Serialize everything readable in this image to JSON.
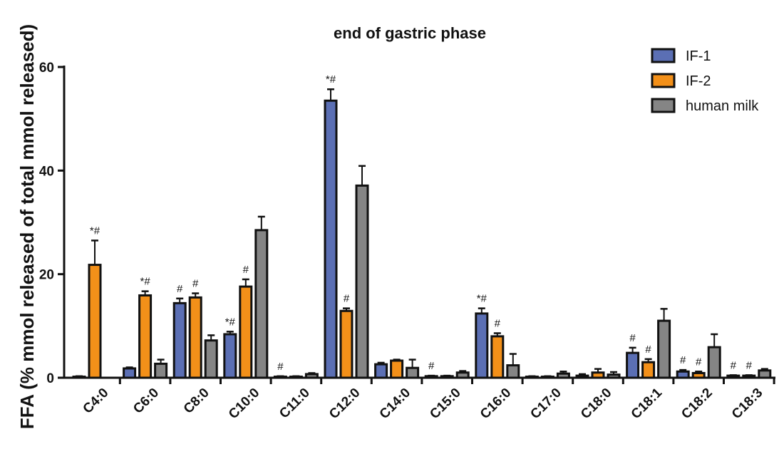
{
  "chart_data": {
    "type": "bar",
    "title": "end of gastric phase",
    "ylabel": "FFA (% mmol released of total mmol released)",
    "xlabel": "",
    "ylim": [
      0,
      60
    ],
    "yticks": [
      0,
      20,
      40,
      60
    ],
    "grid": false,
    "legend_position": "top-right",
    "categories": [
      "C4:0",
      "C6:0",
      "C8:0",
      "C10:0",
      "C11:0",
      "C12:0",
      "C14:0",
      "C15:0",
      "C16:0",
      "C17:0",
      "C18:0",
      "C18:1",
      "C18:2",
      "C18:3"
    ],
    "series": [
      {
        "name": "IF-1",
        "color": "#5b6fb4",
        "values": [
          0.2,
          1.8,
          14.4,
          8.4,
          0.2,
          53.5,
          2.6,
          0.3,
          12.4,
          0.2,
          0.4,
          4.8,
          1.2,
          0.4
        ],
        "errors": [
          0.1,
          0.2,
          0.9,
          0.5,
          0.1,
          2.2,
          0.3,
          0.1,
          1.0,
          0.1,
          0.3,
          1.0,
          0.3,
          0.1
        ],
        "annotations": [
          "",
          "",
          "#",
          "*#",
          "#",
          "*#",
          "",
          "#",
          "*#",
          "",
          "",
          "#",
          "#",
          "#"
        ]
      },
      {
        "name": "IF-2",
        "color": "#f39019",
        "values": [
          21.8,
          15.9,
          15.5,
          17.6,
          0.2,
          12.9,
          3.3,
          0.3,
          8.0,
          0.2,
          1.0,
          3.0,
          0.9,
          0.4
        ],
        "errors": [
          4.7,
          0.8,
          0.8,
          1.4,
          0.1,
          0.5,
          0.2,
          0.1,
          0.6,
          0.1,
          0.7,
          0.6,
          0.3,
          0.1
        ],
        "annotations": [
          "*#",
          "*#",
          "#",
          "#",
          "",
          "#",
          "",
          "",
          "#",
          "",
          "",
          "#",
          "#",
          "#"
        ]
      },
      {
        "name": "human milk",
        "color": "#858585",
        "values": [
          0.0,
          2.7,
          7.2,
          28.5,
          0.7,
          37.1,
          1.9,
          1.0,
          2.4,
          0.8,
          0.6,
          11.0,
          5.9,
          1.4
        ],
        "errors": [
          0.0,
          0.8,
          1.0,
          2.6,
          0.2,
          3.8,
          1.6,
          0.3,
          2.2,
          0.4,
          0.5,
          2.3,
          2.5,
          0.3
        ],
        "annotations": [
          "",
          "",
          "",
          "",
          "",
          "",
          "",
          "",
          "",
          "",
          "",
          "",
          "",
          ""
        ]
      }
    ]
  }
}
